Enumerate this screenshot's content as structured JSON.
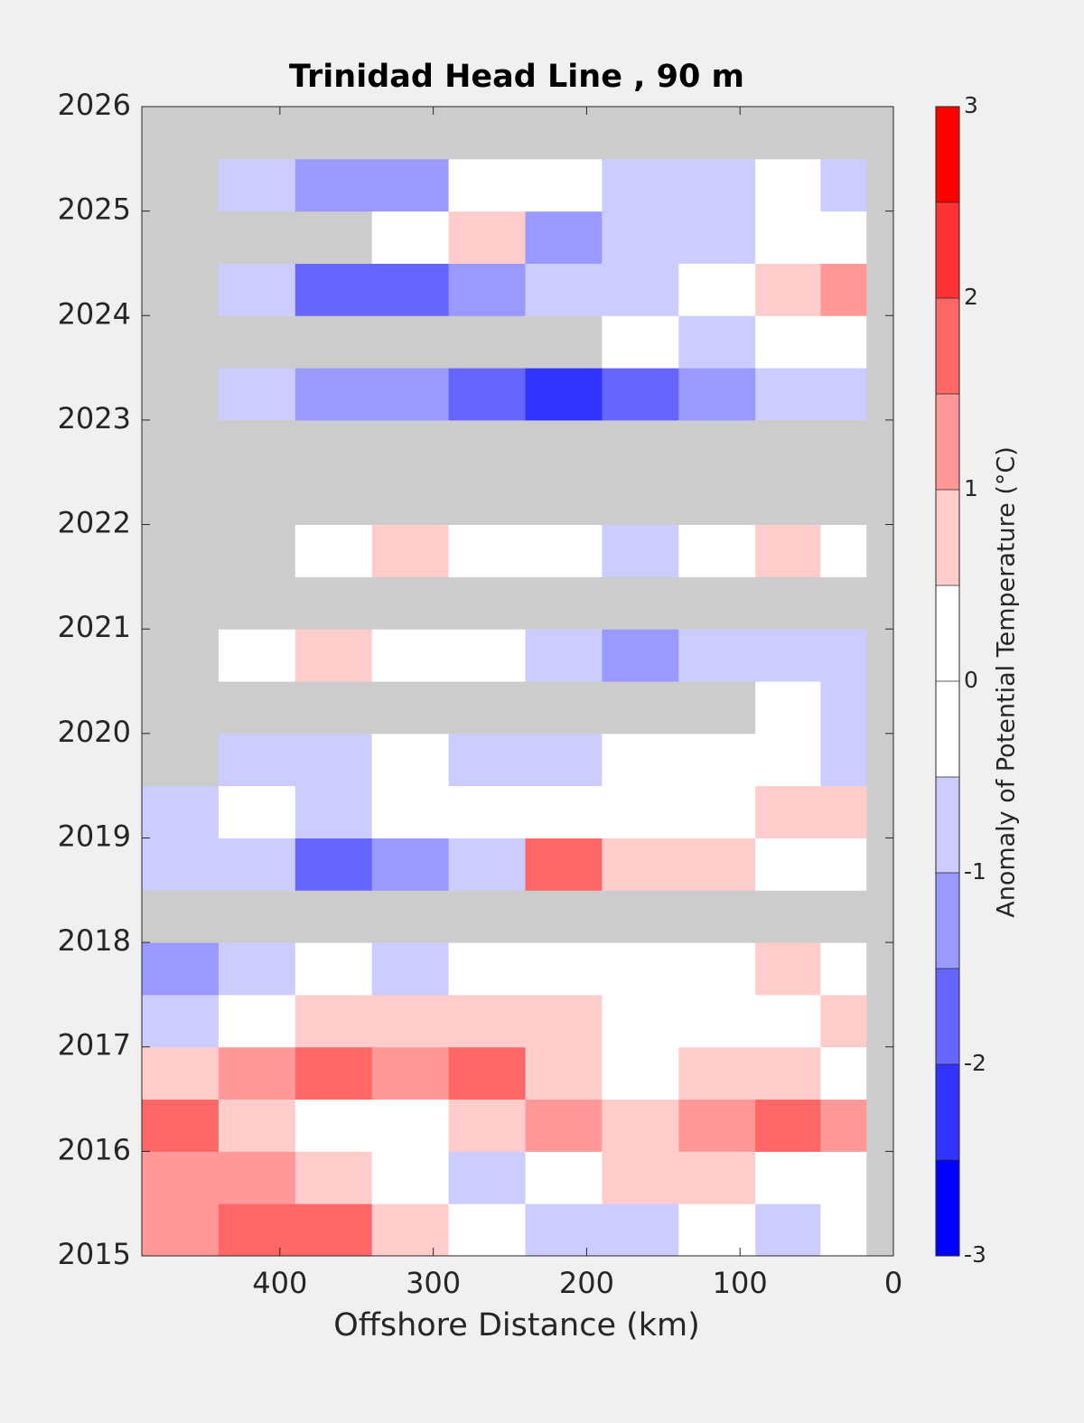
{
  "chart_data": {
    "type": "contour",
    "title": "Trinidad Head Line , 90 m",
    "xlabel": "Offshore Distance (km)",
    "colorbar_label": "Anomaly of Potential Temperature (°C)",
    "xlim": [
      490,
      0
    ],
    "xticks": [
      400,
      300,
      200,
      100,
      0
    ],
    "ylim": [
      2015,
      2026
    ],
    "yticks": [
      2015,
      2016,
      2017,
      2018,
      2019,
      2020,
      2021,
      2022,
      2023,
      2024,
      2025,
      2026
    ],
    "x": [
      465,
      415,
      365,
      315,
      265,
      215,
      165,
      115,
      65,
      30,
      5
    ],
    "y": [
      2015.25,
      2015.75,
      2016.25,
      2016.75,
      2017.25,
      2017.75,
      2018.25,
      2018.75,
      2019.25,
      2019.75,
      2020.25,
      2020.75,
      2021.25,
      2021.75,
      2022.25,
      2022.75,
      2023.25,
      2023.75,
      2024.25,
      2024.75,
      2025.25,
      2025.75
    ],
    "z": [
      [
        1.2,
        1.7,
        1.7,
        0.7,
        0,
        -0.7,
        -0.7,
        0,
        -0.7,
        0,
        null
      ],
      [
        1.2,
        1.2,
        0.7,
        0,
        -0.7,
        0,
        0.7,
        0.7,
        0,
        0,
        null
      ],
      [
        1.7,
        0.7,
        0,
        0,
        0.7,
        1.2,
        0.7,
        1.2,
        1.7,
        1.2,
        null
      ],
      [
        0.7,
        1.2,
        1.7,
        1.2,
        1.7,
        0.7,
        0,
        0.7,
        0.7,
        0,
        null
      ],
      [
        -0.7,
        0,
        0.7,
        0.7,
        0.7,
        0.7,
        0,
        0,
        0,
        0.7,
        null
      ],
      [
        -1.2,
        -0.7,
        0,
        -0.7,
        0,
        0,
        0,
        0,
        0.7,
        0,
        null
      ],
      [
        null,
        null,
        null,
        null,
        null,
        null,
        null,
        null,
        null,
        null,
        null
      ],
      [
        -0.7,
        -0.7,
        -1.7,
        -1.2,
        -0.7,
        1.7,
        0.7,
        0.7,
        0,
        0,
        null
      ],
      [
        -0.7,
        0,
        -0.7,
        0,
        0,
        0,
        0,
        0,
        0.7,
        0.7,
        null
      ],
      [
        null,
        -0.7,
        -0.7,
        0,
        -0.7,
        -0.7,
        0,
        0,
        0,
        -0.7,
        null
      ],
      [
        null,
        null,
        null,
        null,
        null,
        null,
        null,
        null,
        0,
        -0.7,
        null
      ],
      [
        null,
        0,
        0.7,
        0,
        0,
        -0.7,
        -1.2,
        -0.7,
        -0.7,
        -0.7,
        null
      ],
      [
        null,
        null,
        null,
        null,
        null,
        null,
        null,
        null,
        null,
        null,
        null
      ],
      [
        null,
        null,
        0,
        0.7,
        0,
        0,
        -0.7,
        0,
        0.7,
        0,
        null
      ],
      [
        null,
        null,
        null,
        null,
        null,
        null,
        null,
        null,
        null,
        null,
        null
      ],
      [
        null,
        null,
        null,
        null,
        null,
        null,
        null,
        null,
        null,
        null,
        null
      ],
      [
        null,
        -0.7,
        -1.2,
        -1.2,
        -1.7,
        -2.2,
        -1.7,
        -1.2,
        -0.7,
        -0.7,
        null
      ],
      [
        null,
        null,
        null,
        null,
        null,
        null,
        0,
        -0.7,
        0,
        0,
        null
      ],
      [
        null,
        -0.7,
        -1.7,
        -1.7,
        -1.2,
        -0.7,
        -0.7,
        0,
        0.7,
        1.2,
        null
      ],
      [
        null,
        null,
        null,
        0,
        0.7,
        -1.2,
        -0.7,
        -0.7,
        0,
        0,
        null
      ],
      [
        null,
        -0.7,
        -1.2,
        -1.2,
        0,
        0,
        -0.7,
        -0.7,
        0,
        -0.7,
        null
      ],
      [
        null,
        null,
        null,
        null,
        null,
        null,
        null,
        null,
        null,
        null,
        null
      ]
    ],
    "missing_color": "#cccccc",
    "levels": [
      -3,
      -2.5,
      -2,
      -1.5,
      -1,
      -0.5,
      0,
      0.5,
      1,
      1.5,
      2,
      2.5,
      3
    ],
    "colors": [
      "#0000ff",
      "#3333ff",
      "#6666ff",
      "#9999ff",
      "#ccccff",
      "#ffffff",
      "#ffffff",
      "#ffcccc",
      "#ff9999",
      "#ff6666",
      "#ff3333",
      "#ff0000"
    ],
    "cticks": [
      -3,
      -2,
      -1,
      0,
      1,
      2,
      3
    ]
  }
}
